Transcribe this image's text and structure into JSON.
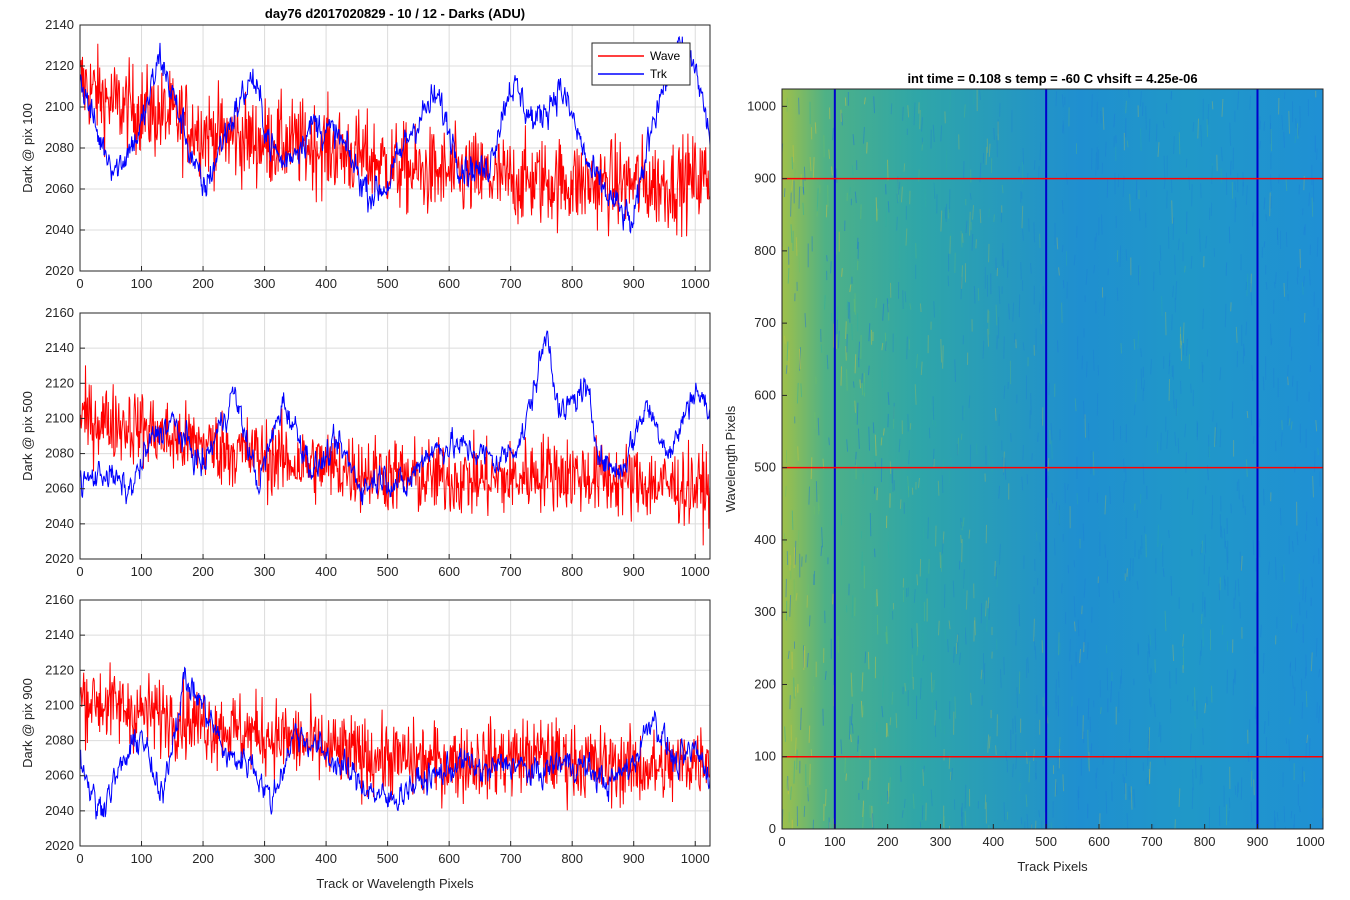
{
  "figure": {
    "title": "day76 d2017020829 - 10 / 12 - Darks (ADU)"
  },
  "chart_data": [
    {
      "type": "line",
      "id": "pix100",
      "title": "day76 d2017020829 - 10 / 12 - Darks (ADU)",
      "xlabel": "",
      "ylabel": "Dark @ pix 100",
      "xlim": [
        0,
        1024
      ],
      "ylim": [
        2020,
        2140
      ],
      "xticks": [
        0,
        100,
        200,
        300,
        400,
        500,
        600,
        700,
        800,
        900,
        1000
      ],
      "yticks": [
        2020,
        2040,
        2060,
        2080,
        2100,
        2120,
        2140
      ],
      "grid": true,
      "legend": {
        "position": "top-right",
        "entries": [
          "Wave",
          "Trk"
        ]
      },
      "series": [
        {
          "name": "Wave",
          "color": "#ff0000",
          "x": [
            0,
            50,
            100,
            150,
            200,
            250,
            300,
            350,
            400,
            450,
            500,
            550,
            600,
            650,
            700,
            750,
            800,
            850,
            900,
            950,
            1024
          ],
          "values": [
            2112,
            2102,
            2098,
            2095,
            2088,
            2085,
            2083,
            2082,
            2080,
            2076,
            2072,
            2068,
            2067,
            2066,
            2064,
            2064,
            2063,
            2062,
            2063,
            2062,
            2066
          ],
          "noise": 18
        },
        {
          "name": "Trk",
          "color": "#0000ff",
          "x": [
            0,
            30,
            60,
            100,
            130,
            170,
            200,
            240,
            280,
            310,
            330,
            380,
            420,
            470,
            500,
            540,
            580,
            620,
            660,
            700,
            740,
            780,
            800,
            830,
            870,
            900,
            930,
            970,
            1000,
            1024
          ],
          "values": [
            2115,
            2085,
            2070,
            2090,
            2125,
            2088,
            2058,
            2090,
            2115,
            2082,
            2072,
            2092,
            2085,
            2058,
            2062,
            2090,
            2105,
            2072,
            2068,
            2112,
            2092,
            2110,
            2095,
            2068,
            2052,
            2042,
            2095,
            2128,
            2120,
            2085
          ],
          "noise": 6
        }
      ]
    },
    {
      "type": "line",
      "id": "pix500",
      "title": "",
      "xlabel": "",
      "ylabel": "Dark @ pix 500",
      "xlim": [
        0,
        1024
      ],
      "ylim": [
        2020,
        2160
      ],
      "xticks": [
        0,
        100,
        200,
        300,
        400,
        500,
        600,
        700,
        800,
        900,
        1000
      ],
      "yticks": [
        2020,
        2040,
        2060,
        2080,
        2100,
        2120,
        2140,
        2160
      ],
      "grid": true,
      "series": [
        {
          "name": "Wave",
          "color": "#ff0000",
          "x": [
            0,
            50,
            100,
            150,
            200,
            250,
            300,
            350,
            400,
            450,
            500,
            550,
            600,
            650,
            700,
            750,
            800,
            850,
            900,
            950,
            1024
          ],
          "values": [
            2100,
            2098,
            2095,
            2088,
            2085,
            2082,
            2078,
            2075,
            2073,
            2070,
            2068,
            2066,
            2066,
            2065,
            2065,
            2070,
            2068,
            2066,
            2064,
            2062,
            2060
          ],
          "noise": 18
        },
        {
          "name": "Trk",
          "color": "#0000ff",
          "x": [
            0,
            40,
            80,
            120,
            150,
            200,
            250,
            290,
            330,
            380,
            420,
            460,
            490,
            530,
            560,
            600,
            640,
            680,
            720,
            760,
            780,
            820,
            850,
            880,
            920,
            960,
            1000,
            1024
          ],
          "values": [
            2062,
            2070,
            2058,
            2090,
            2098,
            2072,
            2115,
            2062,
            2110,
            2070,
            2085,
            2060,
            2068,
            2060,
            2080,
            2085,
            2082,
            2075,
            2090,
            2150,
            2100,
            2118,
            2075,
            2070,
            2108,
            2080,
            2118,
            2102
          ],
          "noise": 6
        }
      ]
    },
    {
      "type": "line",
      "id": "pix900",
      "title": "",
      "xlabel": "Track or Wavelength Pixels",
      "ylabel": "Dark @ pix 900",
      "xlim": [
        0,
        1024
      ],
      "ylim": [
        2020,
        2160
      ],
      "xticks": [
        0,
        100,
        200,
        300,
        400,
        500,
        600,
        700,
        800,
        900,
        1000
      ],
      "yticks": [
        2020,
        2040,
        2060,
        2080,
        2100,
        2120,
        2140,
        2160
      ],
      "grid": true,
      "series": [
        {
          "name": "Wave",
          "color": "#ff0000",
          "x": [
            0,
            50,
            100,
            150,
            200,
            250,
            300,
            350,
            400,
            450,
            500,
            550,
            600,
            650,
            700,
            750,
            800,
            850,
            900,
            950,
            1024
          ],
          "values": [
            2105,
            2100,
            2096,
            2094,
            2090,
            2086,
            2083,
            2080,
            2075,
            2072,
            2070,
            2068,
            2068,
            2068,
            2070,
            2072,
            2068,
            2066,
            2065,
            2064,
            2072
          ],
          "noise": 18
        },
        {
          "name": "Trk",
          "color": "#0000ff",
          "x": [
            0,
            30,
            60,
            100,
            130,
            170,
            200,
            240,
            280,
            310,
            350,
            400,
            450,
            500,
            540,
            580,
            620,
            660,
            700,
            740,
            780,
            820,
            860,
            900,
            930,
            970,
            1000,
            1024
          ],
          "values": [
            2070,
            2040,
            2060,
            2085,
            2045,
            2115,
            2100,
            2070,
            2068,
            2045,
            2085,
            2072,
            2058,
            2045,
            2055,
            2060,
            2068,
            2062,
            2068,
            2060,
            2068,
            2065,
            2055,
            2068,
            2095,
            2065,
            2075,
            2060
          ],
          "noise": 6
        }
      ]
    },
    {
      "type": "heatmap",
      "id": "dark-image",
      "title": "int time = 0.108 s   temp = -60 C   vhsift = 4.25e-06",
      "xlabel": "Track Pixels",
      "ylabel": "Wavelength Pixels",
      "xlim": [
        0,
        1024
      ],
      "ylim": [
        0,
        1024
      ],
      "xticks": [
        0,
        100,
        200,
        300,
        400,
        500,
        600,
        700,
        800,
        900,
        1000
      ],
      "yticks": [
        0,
        100,
        200,
        300,
        400,
        500,
        600,
        700,
        800,
        900,
        1000
      ],
      "colormap": "parula",
      "vertical_markers": {
        "x": [
          100,
          500,
          900
        ],
        "color": "#0000cc"
      },
      "horizontal_markers": {
        "y": [
          100,
          500,
          900
        ],
        "color": "#ff0000"
      }
    }
  ]
}
